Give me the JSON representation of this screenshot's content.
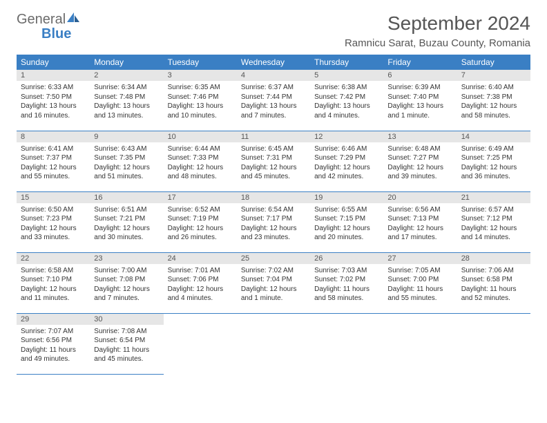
{
  "logo": {
    "general": "General",
    "blue": "Blue"
  },
  "title": {
    "month": "September 2024",
    "location": "Ramnicu Sarat, Buzau County, Romania"
  },
  "colors": {
    "header_bg": "#3a7fc4",
    "header_text": "#ffffff",
    "daynum_bg": "#e6e6e6",
    "daynum_text": "#555555",
    "body_text": "#333333",
    "rule": "#3a7fc4"
  },
  "weekdays": [
    "Sunday",
    "Monday",
    "Tuesday",
    "Wednesday",
    "Thursday",
    "Friday",
    "Saturday"
  ],
  "days": [
    {
      "n": "1",
      "sunrise": "6:33 AM",
      "sunset": "7:50 PM",
      "day_h": "13",
      "day_m": "16"
    },
    {
      "n": "2",
      "sunrise": "6:34 AM",
      "sunset": "7:48 PM",
      "day_h": "13",
      "day_m": "13"
    },
    {
      "n": "3",
      "sunrise": "6:35 AM",
      "sunset": "7:46 PM",
      "day_h": "13",
      "day_m": "10"
    },
    {
      "n": "4",
      "sunrise": "6:37 AM",
      "sunset": "7:44 PM",
      "day_h": "13",
      "day_m": "7"
    },
    {
      "n": "5",
      "sunrise": "6:38 AM",
      "sunset": "7:42 PM",
      "day_h": "13",
      "day_m": "4"
    },
    {
      "n": "6",
      "sunrise": "6:39 AM",
      "sunset": "7:40 PM",
      "day_h": "13",
      "day_m": "1"
    },
    {
      "n": "7",
      "sunrise": "6:40 AM",
      "sunset": "7:38 PM",
      "day_h": "12",
      "day_m": "58"
    },
    {
      "n": "8",
      "sunrise": "6:41 AM",
      "sunset": "7:37 PM",
      "day_h": "12",
      "day_m": "55"
    },
    {
      "n": "9",
      "sunrise": "6:43 AM",
      "sunset": "7:35 PM",
      "day_h": "12",
      "day_m": "51"
    },
    {
      "n": "10",
      "sunrise": "6:44 AM",
      "sunset": "7:33 PM",
      "day_h": "12",
      "day_m": "48"
    },
    {
      "n": "11",
      "sunrise": "6:45 AM",
      "sunset": "7:31 PM",
      "day_h": "12",
      "day_m": "45"
    },
    {
      "n": "12",
      "sunrise": "6:46 AM",
      "sunset": "7:29 PM",
      "day_h": "12",
      "day_m": "42"
    },
    {
      "n": "13",
      "sunrise": "6:48 AM",
      "sunset": "7:27 PM",
      "day_h": "12",
      "day_m": "39"
    },
    {
      "n": "14",
      "sunrise": "6:49 AM",
      "sunset": "7:25 PM",
      "day_h": "12",
      "day_m": "36"
    },
    {
      "n": "15",
      "sunrise": "6:50 AM",
      "sunset": "7:23 PM",
      "day_h": "12",
      "day_m": "33"
    },
    {
      "n": "16",
      "sunrise": "6:51 AM",
      "sunset": "7:21 PM",
      "day_h": "12",
      "day_m": "30"
    },
    {
      "n": "17",
      "sunrise": "6:52 AM",
      "sunset": "7:19 PM",
      "day_h": "12",
      "day_m": "26"
    },
    {
      "n": "18",
      "sunrise": "6:54 AM",
      "sunset": "7:17 PM",
      "day_h": "12",
      "day_m": "23"
    },
    {
      "n": "19",
      "sunrise": "6:55 AM",
      "sunset": "7:15 PM",
      "day_h": "12",
      "day_m": "20"
    },
    {
      "n": "20",
      "sunrise": "6:56 AM",
      "sunset": "7:13 PM",
      "day_h": "12",
      "day_m": "17"
    },
    {
      "n": "21",
      "sunrise": "6:57 AM",
      "sunset": "7:12 PM",
      "day_h": "12",
      "day_m": "14"
    },
    {
      "n": "22",
      "sunrise": "6:58 AM",
      "sunset": "7:10 PM",
      "day_h": "12",
      "day_m": "11"
    },
    {
      "n": "23",
      "sunrise": "7:00 AM",
      "sunset": "7:08 PM",
      "day_h": "12",
      "day_m": "7"
    },
    {
      "n": "24",
      "sunrise": "7:01 AM",
      "sunset": "7:06 PM",
      "day_h": "12",
      "day_m": "4"
    },
    {
      "n": "25",
      "sunrise": "7:02 AM",
      "sunset": "7:04 PM",
      "day_h": "12",
      "day_m": "1"
    },
    {
      "n": "26",
      "sunrise": "7:03 AM",
      "sunset": "7:02 PM",
      "day_h": "11",
      "day_m": "58"
    },
    {
      "n": "27",
      "sunrise": "7:05 AM",
      "sunset": "7:00 PM",
      "day_h": "11",
      "day_m": "55"
    },
    {
      "n": "28",
      "sunrise": "7:06 AM",
      "sunset": "6:58 PM",
      "day_h": "11",
      "day_m": "52"
    },
    {
      "n": "29",
      "sunrise": "7:07 AM",
      "sunset": "6:56 PM",
      "day_h": "11",
      "day_m": "49"
    },
    {
      "n": "30",
      "sunrise": "7:08 AM",
      "sunset": "6:54 PM",
      "day_h": "11",
      "day_m": "45"
    }
  ],
  "labels": {
    "sunrise": "Sunrise:",
    "sunset": "Sunset:",
    "daylight": "Daylight:",
    "hours": "hours",
    "and": "and",
    "minutes": "minutes.",
    "minute": "minute."
  }
}
